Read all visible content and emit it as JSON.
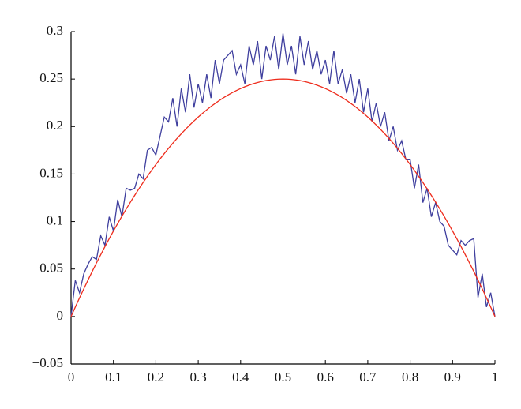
{
  "chart_data": {
    "type": "line",
    "x": [
      0,
      0.01,
      0.02,
      0.03,
      0.04,
      0.05,
      0.06,
      0.07,
      0.08,
      0.09,
      0.1,
      0.11,
      0.12,
      0.13,
      0.14,
      0.15,
      0.16,
      0.17,
      0.18,
      0.19,
      0.2,
      0.21,
      0.22,
      0.23,
      0.24,
      0.25,
      0.26,
      0.27,
      0.28,
      0.29,
      0.3,
      0.31,
      0.32,
      0.33,
      0.34,
      0.35,
      0.36,
      0.37,
      0.38,
      0.39,
      0.4,
      0.41,
      0.42,
      0.43,
      0.44,
      0.45,
      0.46,
      0.47,
      0.48,
      0.49,
      0.5,
      0.51,
      0.52,
      0.53,
      0.54,
      0.55,
      0.56,
      0.57,
      0.58,
      0.59,
      0.6,
      0.61,
      0.62,
      0.63,
      0.64,
      0.65,
      0.66,
      0.67,
      0.68,
      0.69,
      0.7,
      0.71,
      0.72,
      0.73,
      0.74,
      0.75,
      0.76,
      0.77,
      0.78,
      0.79,
      0.8,
      0.81,
      0.82,
      0.83,
      0.84,
      0.85,
      0.86,
      0.87,
      0.88,
      0.89,
      0.9,
      0.91,
      0.92,
      0.93,
      0.94,
      0.95,
      0.96,
      0.97,
      0.98,
      0.99,
      1
    ],
    "series": [
      {
        "color": "#3f3f9e",
        "values": [
          0,
          0.038,
          0.025,
          0.045,
          0.055,
          0.063,
          0.06,
          0.085,
          0.075,
          0.105,
          0.09,
          0.123,
          0.105,
          0.135,
          0.133,
          0.135,
          0.15,
          0.145,
          0.175,
          0.178,
          0.17,
          0.19,
          0.21,
          0.205,
          0.23,
          0.2,
          0.24,
          0.215,
          0.255,
          0.22,
          0.245,
          0.225,
          0.255,
          0.23,
          0.27,
          0.245,
          0.27,
          0.275,
          0.28,
          0.255,
          0.265,
          0.245,
          0.285,
          0.265,
          0.29,
          0.25,
          0.285,
          0.27,
          0.295,
          0.26,
          0.298,
          0.265,
          0.285,
          0.255,
          0.295,
          0.265,
          0.29,
          0.26,
          0.28,
          0.255,
          0.27,
          0.245,
          0.28,
          0.245,
          0.26,
          0.235,
          0.255,
          0.225,
          0.25,
          0.215,
          0.24,
          0.205,
          0.225,
          0.2,
          0.215,
          0.185,
          0.2,
          0.175,
          0.185,
          0.165,
          0.165,
          0.135,
          0.16,
          0.12,
          0.135,
          0.105,
          0.12,
          0.1,
          0.095,
          0.075,
          0.07,
          0.065,
          0.08,
          0.075,
          0.08,
          0.082,
          0.02,
          0.045,
          0.01,
          0.025,
          0
        ]
      },
      {
        "color": "#ee2c1c",
        "values": [
          0,
          0.0099,
          0.0196,
          0.0291,
          0.0384,
          0.0475,
          0.0564,
          0.0651,
          0.0736,
          0.0819,
          0.09,
          0.0979,
          0.1056,
          0.1131,
          0.1204,
          0.1275,
          0.1344,
          0.1411,
          0.1476,
          0.1539,
          0.16,
          0.1659,
          0.1716,
          0.1771,
          0.1824,
          0.1875,
          0.1924,
          0.1971,
          0.2016,
          0.2059,
          0.21,
          0.2139,
          0.2176,
          0.2211,
          0.2244,
          0.2275,
          0.2304,
          0.2331,
          0.2356,
          0.2379,
          0.24,
          0.2419,
          0.2436,
          0.2451,
          0.2464,
          0.2475,
          0.2484,
          0.2491,
          0.2496,
          0.2499,
          0.25,
          0.2499,
          0.2496,
          0.2491,
          0.2484,
          0.2475,
          0.2464,
          0.2451,
          0.2436,
          0.2419,
          0.24,
          0.2379,
          0.2356,
          0.2331,
          0.2304,
          0.2275,
          0.2244,
          0.2211,
          0.2176,
          0.2139,
          0.21,
          0.2059,
          0.2016,
          0.1971,
          0.1924,
          0.1875,
          0.1824,
          0.1771,
          0.1716,
          0.1659,
          0.16,
          0.1539,
          0.1476,
          0.1411,
          0.1344,
          0.1275,
          0.1204,
          0.1131,
          0.1056,
          0.0979,
          0.09,
          0.0819,
          0.0736,
          0.0651,
          0.0564,
          0.0475,
          0.0384,
          0.0291,
          0.0196,
          0.0099,
          0
        ]
      }
    ],
    "xlim": [
      0,
      1
    ],
    "xticks": [
      0,
      0.1,
      0.2,
      0.3,
      0.4,
      0.5,
      0.6,
      0.7,
      0.8,
      0.9,
      1
    ],
    "ylim": [
      -0.05,
      0.3
    ],
    "yticks": [
      {
        "value": -0.05,
        "label": "−0.05"
      },
      0,
      0.05,
      0.1,
      0.15,
      0.2,
      0.25,
      0.3
    ],
    "grid": false
  }
}
